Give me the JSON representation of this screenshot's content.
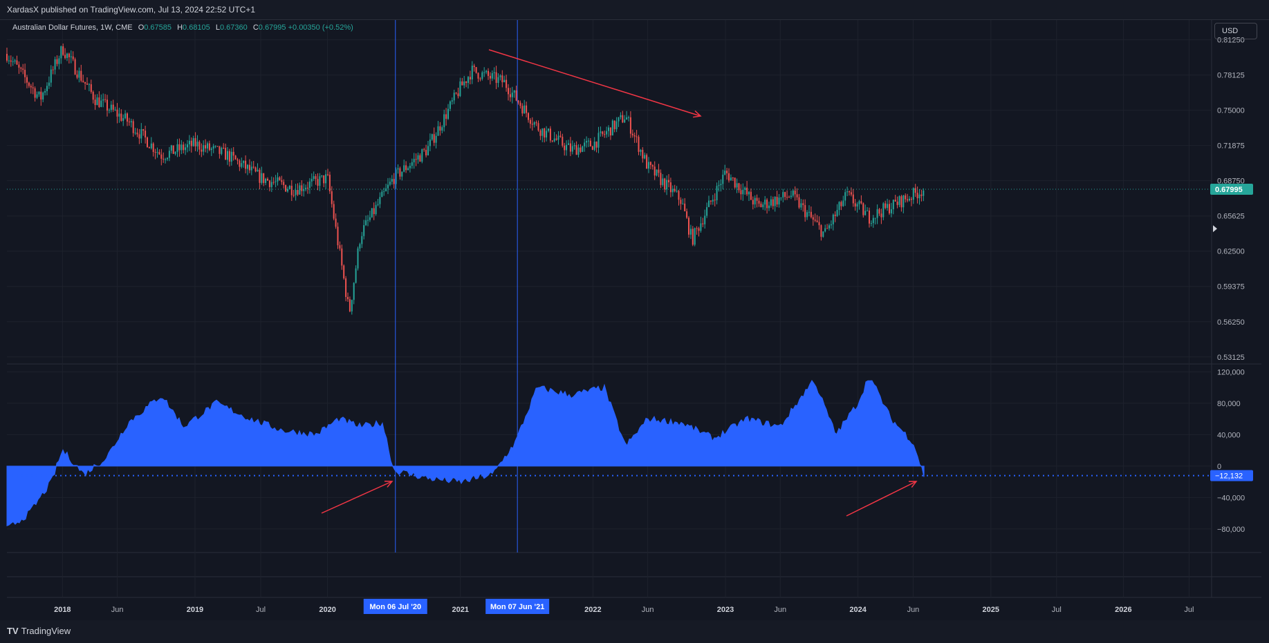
{
  "header": {
    "published": "XardasX published on TradingView.com, Jul 13, 2024 22:52 UTC+1"
  },
  "legend": {
    "symbol": "Australian Dollar Futures, 1W, CME",
    "o_label": "O",
    "o": "0.67585",
    "h_label": "H",
    "h": "0.68105",
    "l_label": "L",
    "l": "0.67360",
    "c_label": "C",
    "c": "0.67995",
    "change": "+0.00350 (+0.52%)"
  },
  "currency_button": "USD",
  "brand": {
    "logo": "TV",
    "name": "TradingView"
  },
  "colors": {
    "up": "#26a69a",
    "down": "#ef5350",
    "area": "#2962ff",
    "arrow": "#f23645",
    "marker": "#2962ff"
  },
  "chart_data": [
    {
      "type": "candlestick",
      "title": "Australian Dollar Futures, 1W, CME",
      "ylim": [
        0.525,
        0.83
      ],
      "y_ticks": [
        "0.81250",
        "0.78125",
        "0.75000",
        "0.71875",
        "0.68750",
        "0.65625",
        "0.62500",
        "0.59375",
        "0.56250",
        "0.53125"
      ],
      "last_price": 0.67995,
      "last_price_label": "0.67995",
      "x": [
        "2017-08",
        "2017-11",
        "2018-01",
        "2018-04",
        "2018-07",
        "2018-10",
        "2019-01",
        "2019-04",
        "2019-07",
        "2019-10",
        "2020-01",
        "2020-03",
        "2020-04",
        "2020-07",
        "2020-10",
        "2021-01",
        "2021-02",
        "2021-05",
        "2021-08",
        "2021-11",
        "2022-01",
        "2022-04",
        "2022-06",
        "2022-09",
        "2022-10",
        "2023-01",
        "2023-04",
        "2023-07",
        "2023-10",
        "2023-12",
        "2024-02",
        "2024-04",
        "2024-07"
      ],
      "close": [
        0.8,
        0.76,
        0.805,
        0.76,
        0.74,
        0.71,
        0.72,
        0.71,
        0.69,
        0.68,
        0.69,
        0.57,
        0.64,
        0.69,
        0.715,
        0.77,
        0.785,
        0.775,
        0.735,
        0.715,
        0.72,
        0.745,
        0.7,
        0.67,
        0.635,
        0.695,
        0.665,
        0.675,
        0.64,
        0.675,
        0.655,
        0.665,
        0.68
      ]
    },
    {
      "type": "area",
      "title": "",
      "ylim": [
        -110000,
        130000
      ],
      "y_ticks": [
        "120,000",
        "80,000",
        "40,000",
        "0",
        "−40,000",
        "−80,000"
      ],
      "last_value": -12132,
      "last_value_label": "−12,132",
      "x": [
        "2017-08",
        "2017-10",
        "2017-12",
        "2018-01",
        "2018-03",
        "2018-05",
        "2018-07",
        "2018-10",
        "2018-12",
        "2019-03",
        "2019-06",
        "2019-09",
        "2019-12",
        "2020-02",
        "2020-04",
        "2020-06",
        "2020-07",
        "2020-10",
        "2021-01",
        "2021-04",
        "2021-06",
        "2021-08",
        "2021-11",
        "2022-02",
        "2022-04",
        "2022-06",
        "2022-09",
        "2022-12",
        "2023-03",
        "2023-06",
        "2023-09",
        "2023-11",
        "2024-01",
        "2024-02",
        "2024-04",
        "2024-06",
        "2024-07"
      ],
      "values": [
        -80000,
        -60000,
        -20000,
        20000,
        -10000,
        10000,
        55000,
        90000,
        50000,
        80000,
        60000,
        45000,
        40000,
        60000,
        50000,
        55000,
        -5000,
        -15000,
        -20000,
        -10000,
        30000,
        100000,
        90000,
        100000,
        25000,
        60000,
        55000,
        35000,
        60000,
        50000,
        110000,
        40000,
        80000,
        115000,
        60000,
        30000,
        -12132
      ]
    }
  ],
  "x_axis": {
    "labels": [
      "2018",
      "Jun",
      "2019",
      "Jul",
      "2020",
      "2021",
      "2022",
      "Jun",
      "2023",
      "Jun",
      "2024",
      "Jun",
      "2025",
      "Jul",
      "2026",
      "Jul"
    ],
    "markers": [
      "Mon 06 Jul '20",
      "Mon 07 Jun '21"
    ]
  }
}
